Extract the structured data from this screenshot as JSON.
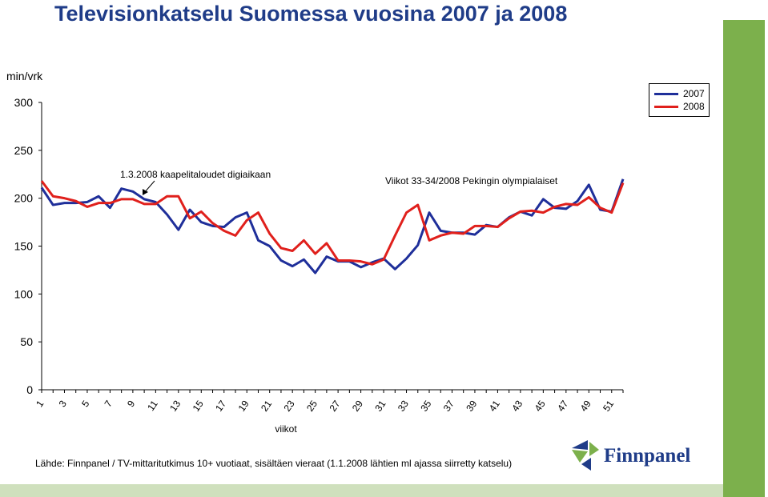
{
  "title": "Televisionkatselu Suomessa vuosina 2007 ja 2008",
  "source_note": "Lähde: Finnpanel / TV-mittaritutkimus 10+ vuotiaat, sisältäen vieraat (1.1.2008 lähtien ml  ajassa siirretty katselu)",
  "logo_text": "Finnpanel",
  "chart_data": {
    "type": "line",
    "xlabel": "viikot",
    "ylabel": "min/vrk",
    "ylim": [
      0,
      300
    ],
    "yticks": [
      0,
      50,
      100,
      150,
      200,
      250,
      300
    ],
    "xticks": [
      1,
      3,
      5,
      7,
      9,
      11,
      13,
      15,
      17,
      19,
      21,
      23,
      25,
      27,
      29,
      31,
      33,
      35,
      37,
      39,
      41,
      43,
      45,
      47,
      49,
      51
    ],
    "x": [
      1,
      2,
      3,
      4,
      5,
      6,
      7,
      8,
      9,
      10,
      11,
      12,
      13,
      14,
      15,
      16,
      17,
      18,
      19,
      20,
      21,
      22,
      23,
      24,
      25,
      26,
      27,
      28,
      29,
      30,
      31,
      32,
      33,
      34,
      35,
      36,
      37,
      38,
      39,
      40,
      41,
      42,
      43,
      44,
      45,
      46,
      47,
      48,
      49,
      50,
      51,
      52
    ],
    "series": [
      {
        "name": "2007",
        "color": "#1f2f9a",
        "values": [
          211,
          193,
          195,
          195,
          196,
          202,
          190,
          210,
          207,
          199,
          196,
          183,
          167,
          188,
          175,
          171,
          170,
          180,
          185,
          156,
          150,
          135,
          129,
          136,
          122,
          139,
          134,
          134,
          128,
          133,
          137,
          126,
          137,
          151,
          185,
          166,
          164,
          164,
          162,
          172,
          170,
          180,
          186,
          182,
          199,
          190,
          189,
          197,
          214,
          188,
          186,
          220
        ]
      },
      {
        "name": "2008",
        "color": "#e0201c",
        "values": [
          218,
          202,
          200,
          197,
          191,
          195,
          195,
          199,
          199,
          194,
          194,
          202,
          202,
          179,
          186,
          174,
          166,
          161,
          177,
          185,
          163,
          148,
          145,
          156,
          142,
          153,
          135,
          135,
          134,
          131,
          136,
          161,
          185,
          193,
          156,
          161,
          164,
          163,
          171,
          171,
          170,
          179,
          186,
          187,
          185,
          191,
          194,
          193,
          201,
          190,
          185,
          216
        ]
      }
    ],
    "annotations": [
      "1.3.2008 kaapelitaloudet digiaikaan",
      "Viikot 33-34/2008 Pekingin olympialaiset"
    ],
    "legend_position": "top-right",
    "grid": false
  }
}
